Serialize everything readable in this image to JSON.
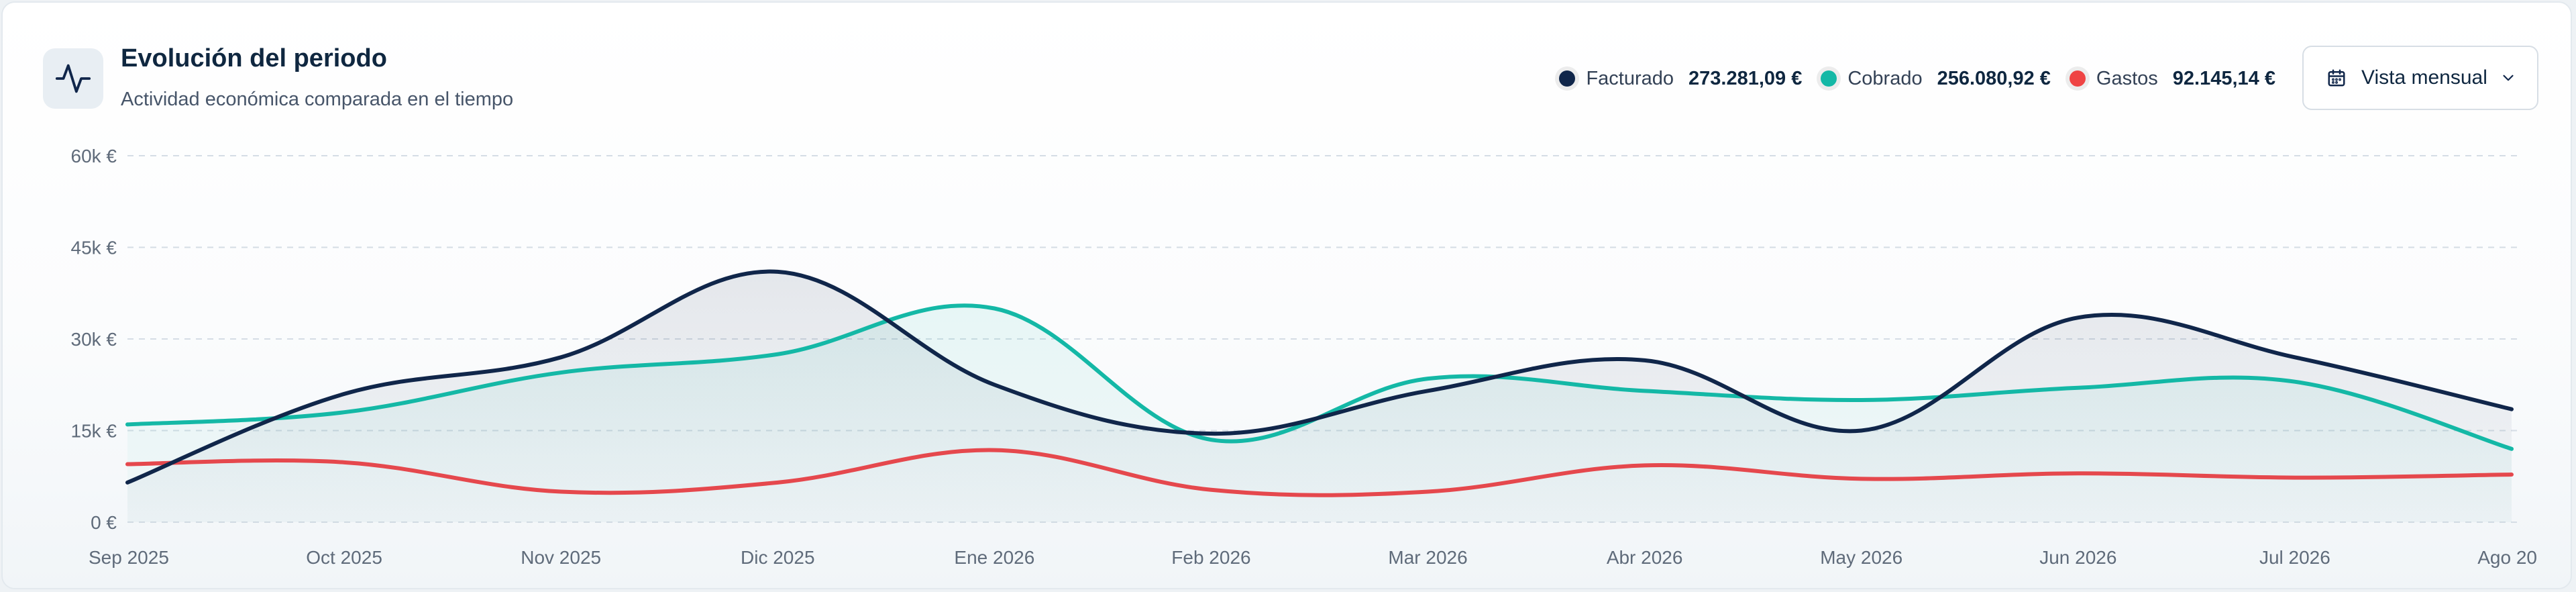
{
  "header": {
    "title": "Evolución del periodo",
    "subtitle": "Actividad económica comparada en el tiempo",
    "icon": "activity-pulse-icon"
  },
  "legend": [
    {
      "label": "Facturado",
      "value": "273.281,09 €",
      "color": "#10264a"
    },
    {
      "label": "Cobrado",
      "value": "256.080,92 €",
      "color": "#14b8a6"
    },
    {
      "label": "Gastos",
      "value": "92.145,14 €",
      "color": "#ef4444"
    }
  ],
  "view_selector": {
    "label": "Vista mensual",
    "icon": "calendar-icon",
    "chevron": "chevron-down-icon"
  },
  "chart_data": {
    "type": "line",
    "x": [
      "Sep 2025",
      "Oct 2025",
      "Nov 2025",
      "Dic 2025",
      "Ene 2026",
      "Feb 2026",
      "Mar 2026",
      "Abr 2026",
      "May 2026",
      "Jun 2026",
      "Jul 2026",
      "Ago 20"
    ],
    "y_ticks": [
      "0 €",
      "15k €",
      "30k €",
      "45k €",
      "60k €"
    ],
    "ylim": [
      0,
      60000
    ],
    "grid": true,
    "legend_position": "top-right",
    "series": [
      {
        "name": "Facturado",
        "color": "#10264a",
        "area": true,
        "values": [
          6500,
          21000,
          27000,
          41000,
          22500,
          14500,
          21500,
          26500,
          15000,
          33500,
          27000,
          18500
        ]
      },
      {
        "name": "Cobrado",
        "color": "#14b8a6",
        "area": true,
        "values": [
          16000,
          18000,
          24500,
          27500,
          35000,
          13500,
          23500,
          21500,
          20000,
          22000,
          23000,
          12000
        ]
      },
      {
        "name": "Gastos",
        "color": "#e5484d",
        "area": false,
        "values": [
          9500,
          9800,
          5000,
          6500,
          11800,
          5300,
          5000,
          9300,
          7100,
          8000,
          7300,
          7800
        ]
      }
    ]
  }
}
